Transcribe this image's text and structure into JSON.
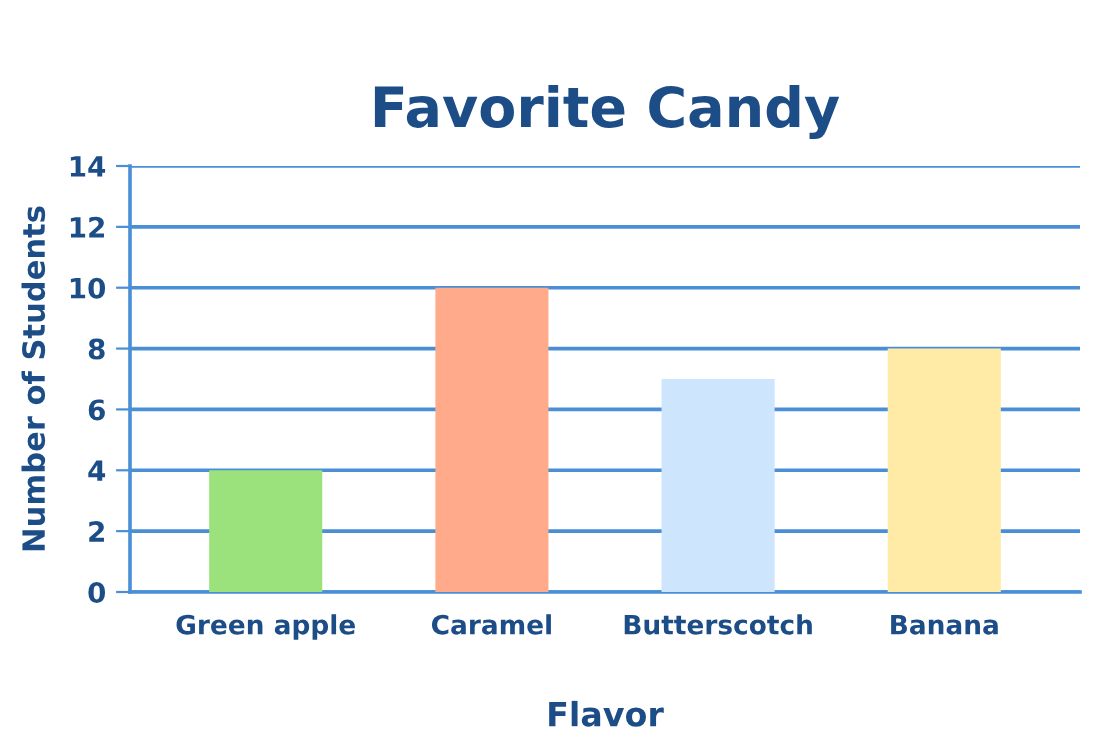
{
  "chart_data": {
    "type": "bar",
    "title": "Favorite Candy",
    "xlabel": "Flavor",
    "ylabel": "Number of Students",
    "categories": [
      "Green apple",
      "Caramel",
      "Butterscotch",
      "Banana"
    ],
    "values": [
      4,
      10,
      7,
      8
    ],
    "colors": [
      "#9be27c",
      "#ffab8b",
      "#cde5fd",
      "#ffeba6"
    ],
    "ylim": [
      0,
      14
    ],
    "yticks": [
      0,
      2,
      4,
      6,
      8,
      10,
      12,
      14
    ],
    "grid": "y"
  }
}
